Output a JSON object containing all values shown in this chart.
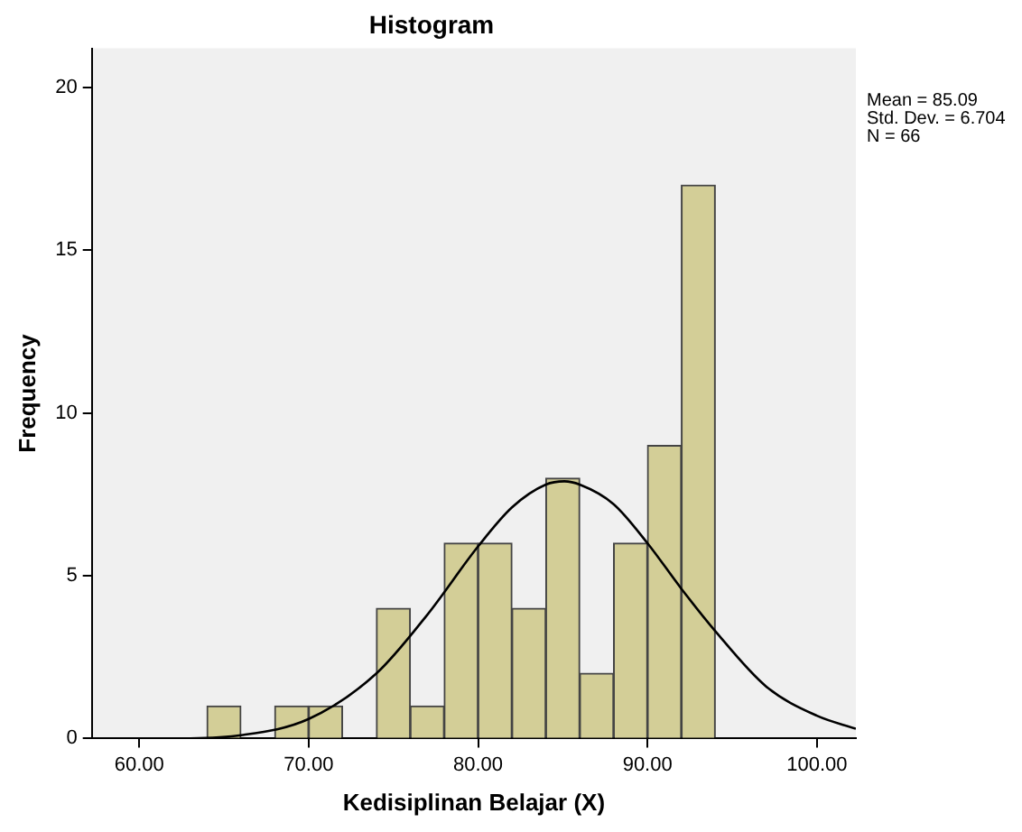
{
  "chart_data": {
    "type": "histogram",
    "title": "Histogram",
    "xlabel": "Kedisiplinan Belajar (X)",
    "ylabel": "Frequency",
    "bins": [
      64,
      66,
      68,
      70,
      72,
      74,
      76,
      78,
      80,
      82,
      84,
      86,
      88,
      90,
      92,
      94
    ],
    "values": [
      1,
      0,
      1,
      1,
      0,
      4,
      1,
      6,
      6,
      4,
      8,
      2,
      6,
      9,
      17
    ],
    "color": "#d3ce97",
    "series": [
      {
        "type": "line",
        "color": "#000000",
        "x": [
          58,
          62,
          66,
          70,
          74,
          77,
          80,
          82,
          84,
          85.09,
          86,
          88,
          90,
          92,
          94,
          97,
          100,
          102.3
        ],
        "values": [
          0,
          0,
          0.1,
          0.6,
          2.0,
          3.8,
          5.9,
          7.1,
          7.8,
          7.9,
          7.8,
          7.2,
          6.0,
          4.6,
          3.3,
          1.6,
          0.7,
          0.3
        ]
      }
    ],
    "xlim": [
      57.2,
      102.3
    ],
    "xticks": [
      {
        "value": 60,
        "label": "60.00"
      },
      {
        "value": 70,
        "label": "70.00"
      },
      {
        "value": 80,
        "label": "80.00"
      },
      {
        "value": 90,
        "label": "90.00"
      },
      {
        "value": 100,
        "label": "100.00"
      }
    ],
    "ylim": [
      0,
      21.2
    ],
    "yticks": [
      0,
      5,
      10,
      15,
      20
    ],
    "annotations": [
      "Mean = 85.09\nStd. Dev. = 6.704\nN = 66"
    ],
    "grid": false,
    "legend": false,
    "marker": "none",
    "line_style": "solid"
  }
}
